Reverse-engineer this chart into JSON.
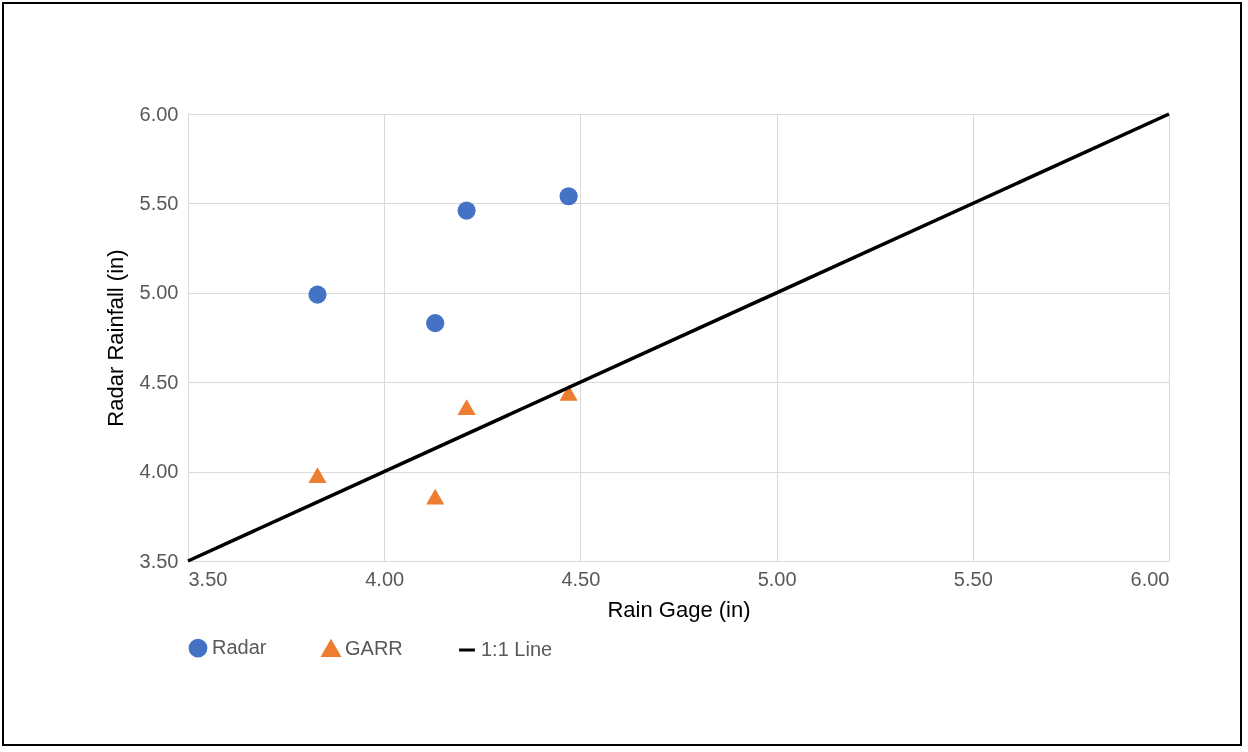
{
  "chart_data": {
    "type": "scatter",
    "xlabel": "Rain Gage (in)",
    "ylabel": "Radar Rainfall (in)",
    "xlim": [
      3.5,
      6
    ],
    "xticks": [
      {
        "value": 3.5,
        "label": "3.50"
      },
      {
        "value": 4,
        "label": "4.00"
      },
      {
        "value": 4.5,
        "label": "4.50"
      },
      {
        "value": 5,
        "label": "5.00"
      },
      {
        "value": 5.5,
        "label": "5.50"
      },
      {
        "value": 6,
        "label": "6.00"
      }
    ],
    "ylim": [
      3.5,
      6
    ],
    "yticks": [
      {
        "value": 3.5,
        "label": "3.50"
      },
      {
        "value": 4,
        "label": "4.00"
      },
      {
        "value": 4.5,
        "label": "4.50"
      },
      {
        "value": 5,
        "label": "5.00"
      },
      {
        "value": 5.5,
        "label": "5.50"
      },
      {
        "value": 6,
        "label": "6.00"
      }
    ],
    "grid": true,
    "legend": "bottom",
    "series": [
      {
        "name": "Radar",
        "marker": "circle",
        "color": "#4472c4",
        "x": [
          3.83,
          4.21,
          4.47,
          4.13
        ],
        "values": [
          4.99,
          5.46,
          5.54,
          4.83
        ]
      },
      {
        "name": "GARR",
        "marker": "triangle",
        "color": "#ed7d31",
        "x": [
          3.83,
          4.21,
          4.47,
          4.13
        ],
        "values": [
          3.98,
          4.36,
          4.44,
          3.86
        ]
      },
      {
        "name": "1:1 Line",
        "type": "line",
        "marker": "none",
        "color": "#000000",
        "x": [
          3.5,
          6
        ],
        "values": [
          3.5,
          6
        ]
      }
    ]
  }
}
